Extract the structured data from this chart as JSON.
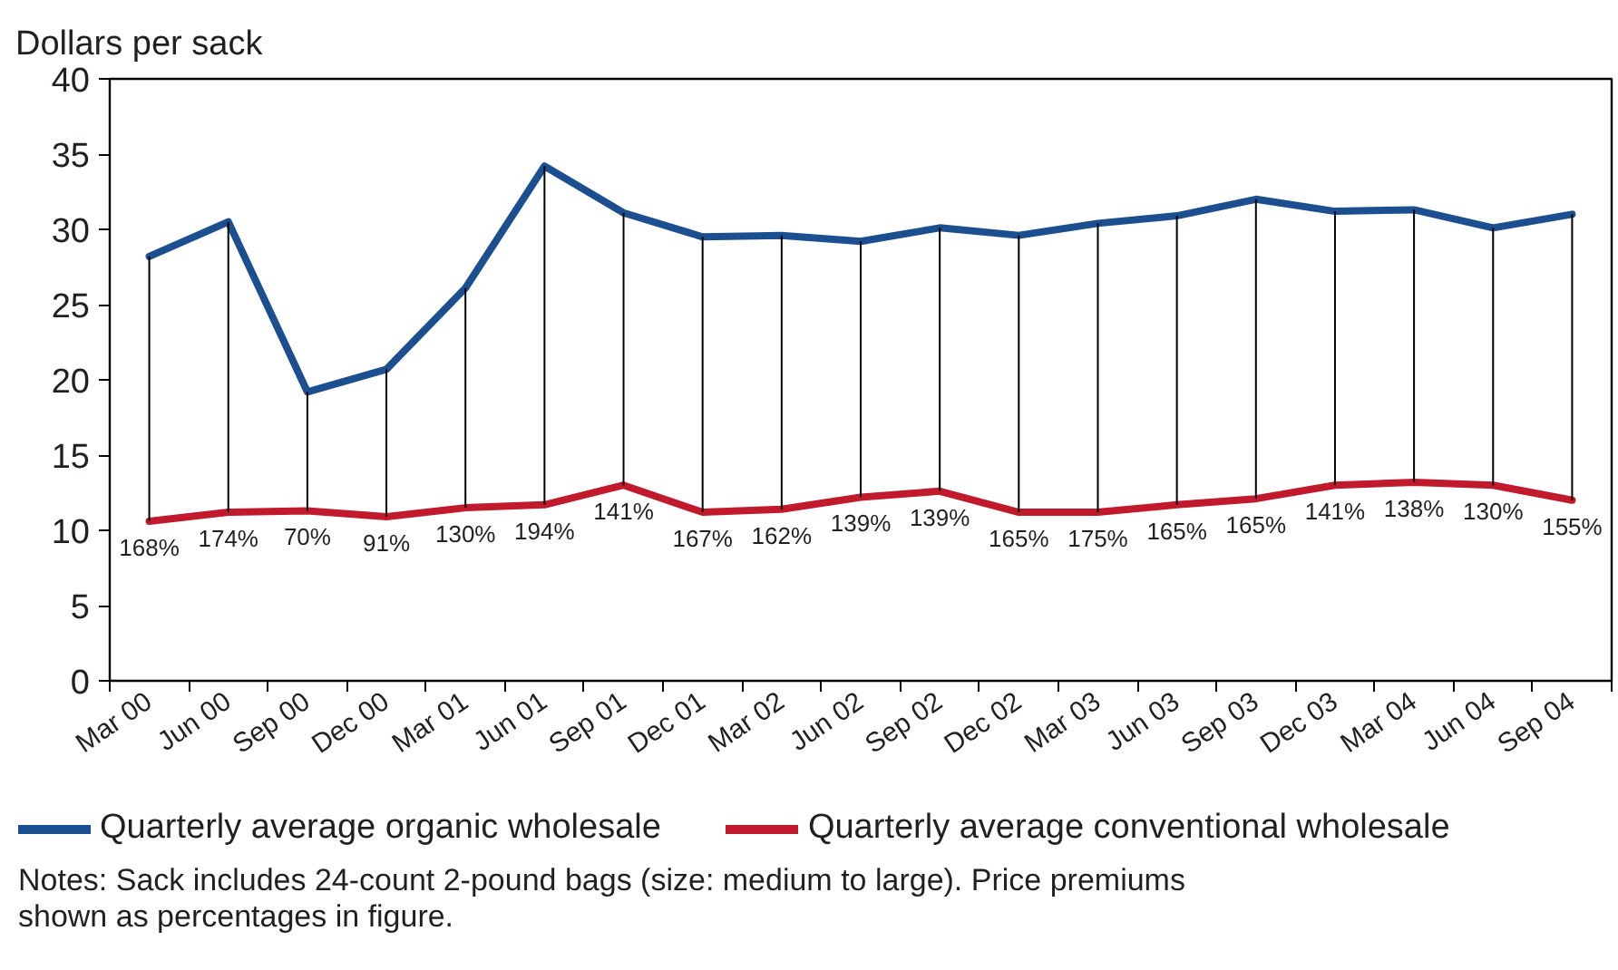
{
  "chart_data": {
    "type": "line",
    "ylabel": "Dollars per sack",
    "categories": [
      "Mar 00",
      "Jun 00",
      "Sep 00",
      "Dec 00",
      "Mar 01",
      "Jun 01",
      "Sep 01",
      "Dec 01",
      "Mar 02",
      "Jun 02",
      "Sep 02",
      "Dec 02",
      "Mar 03",
      "Jun 03",
      "Sep 03",
      "Dec 03",
      "Mar 04",
      "Jun 04",
      "Sep 04"
    ],
    "series": [
      {
        "name": "Quarterly average organic wholesale",
        "color": "#1c4f8f",
        "values": [
          28.2,
          30.5,
          19.2,
          20.7,
          26.1,
          34.2,
          31.1,
          29.5,
          29.6,
          29.2,
          30.1,
          29.6,
          30.4,
          30.9,
          32.0,
          31.2,
          31.3,
          30.1,
          31.0
        ],
        "errors": [
          [
            10.6,
            28.2
          ],
          [
            11.2,
            30.5
          ],
          [
            11.3,
            19.2
          ],
          [
            10.9,
            20.7
          ],
          [
            11.5,
            26.1
          ],
          [
            11.7,
            34.2
          ],
          [
            13.0,
            31.1
          ],
          [
            11.2,
            29.5
          ],
          [
            11.4,
            29.6
          ],
          [
            12.2,
            29.2
          ],
          [
            12.6,
            30.1
          ],
          [
            11.2,
            29.6
          ],
          [
            11.2,
            30.4
          ],
          [
            11.7,
            30.9
          ],
          [
            12.1,
            32.0
          ],
          [
            13.0,
            31.2
          ],
          [
            13.2,
            31.3
          ],
          [
            13.0,
            30.1
          ],
          [
            12.0,
            31.0
          ]
        ]
      },
      {
        "name": "Quarterly average conventional wholesale",
        "color": "#c01a2c",
        "values": [
          10.6,
          11.2,
          11.3,
          10.9,
          11.5,
          11.7,
          13.0,
          11.2,
          11.4,
          12.2,
          12.6,
          11.2,
          11.2,
          11.7,
          12.1,
          13.0,
          13.2,
          13.0,
          12.0
        ]
      }
    ],
    "ylim": [
      0,
      40
    ],
    "yticks": [
      0,
      5,
      10,
      15,
      20,
      25,
      30,
      35,
      40
    ],
    "grid": false,
    "legend": "bottom",
    "line_style": "solid",
    "annotations": [
      {
        "text": "168%",
        "x": "Mar 00",
        "y": 10.6
      },
      {
        "text": "174%",
        "x": "Jun 00",
        "y": 11.2
      },
      {
        "text": "70%",
        "x": "Sep 00",
        "y": 11.3
      },
      {
        "text": "91%",
        "x": "Dec 00",
        "y": 10.9
      },
      {
        "text": "130%",
        "x": "Mar 01",
        "y": 11.5
      },
      {
        "text": "194%",
        "x": "Jun 01",
        "y": 11.7
      },
      {
        "text": "141%",
        "x": "Sep 01",
        "y": 13.0
      },
      {
        "text": "167%",
        "x": "Dec 01",
        "y": 11.2
      },
      {
        "text": "162%",
        "x": "Mar 02",
        "y": 11.4
      },
      {
        "text": "139%",
        "x": "Jun 02",
        "y": 12.2
      },
      {
        "text": "139%",
        "x": "Sep 02",
        "y": 12.6
      },
      {
        "text": "165%",
        "x": "Dec 02",
        "y": 11.2
      },
      {
        "text": "175%",
        "x": "Mar 03",
        "y": 11.2
      },
      {
        "text": "165%",
        "x": "Jun 03",
        "y": 11.7
      },
      {
        "text": "165%",
        "x": "Sep 03",
        "y": 12.1
      },
      {
        "text": "141%",
        "x": "Dec 03",
        "y": 13.0
      },
      {
        "text": "138%",
        "x": "Mar 04",
        "y": 13.2
      },
      {
        "text": "130%",
        "x": "Jun 04",
        "y": 13.0
      },
      {
        "text": "155%",
        "x": "Sep 04",
        "y": 12.0
      },
      "Notes: Sack includes 24-count 2-pound bags (size: medium to large). Price premiums shown as percentages in figure."
    ]
  }
}
